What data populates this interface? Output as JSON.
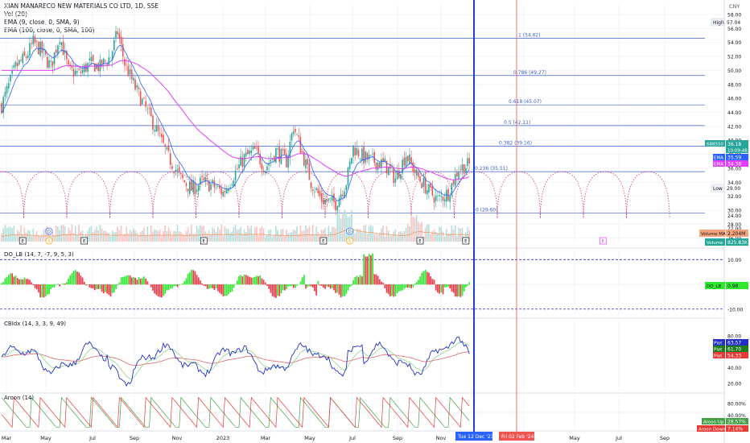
{
  "header": {
    "title": "XIAN MANARECO NEW MATERIALS CO LTD, 1D, SSE",
    "indicators": [
      "Vol (20)",
      "EMA (9, close, 0, SMA, 9)",
      "EMA (100, close, 0, SMA, 100)"
    ]
  },
  "currency": "CNY",
  "colors": {
    "up": "#26a69a",
    "down": "#ef5350",
    "fib": "#3a5fcd",
    "ema9": "#2962ff",
    "ema100": "#e040fb",
    "cycle": "#e0245e",
    "vline": "#1e40d8",
    "vline2": "#ef5350",
    "do_up": "#2ee82e",
    "do_dn": "#f23645",
    "cbi_plot": "#2230c8",
    "cbi_ema1": "#8fd18f",
    "cbi_ema2": "#e06666",
    "aroon_up": "#43a047",
    "aroon_dn": "#e53935"
  },
  "time_axis": {
    "labels": [
      "Mar",
      "May",
      "Jul",
      "Sep",
      "Nov",
      "2023",
      "Mar",
      "May",
      "Jul",
      "Sep",
      "Nov",
      "Mar",
      "May",
      "Jul",
      "Sep"
    ],
    "date_tag_1": "Tue 12 Dec '23",
    "date_tag_2": "Fri 02 Feb '24"
  },
  "chart_data": [
    {
      "type": "candlestick",
      "title": "XIAN MANARECO NEW MATERIALS CO LTD, 1D, SSE",
      "ylim": [
        25.5,
        59.5
      ],
      "y_ticks": [
        26,
        28,
        30,
        32,
        34,
        36,
        38,
        40,
        42,
        44,
        46,
        48,
        50,
        52,
        54,
        56,
        58
      ],
      "y_tick_labels": [
        "26.00",
        "28.00",
        "30.00",
        "32.00",
        "34.00",
        "36.00",
        "38.00",
        "40.00",
        "42.00",
        "44.00",
        "46.00",
        "48.00",
        "50.00",
        "52.00",
        "54.00",
        "56.00",
        "58.00"
      ],
      "close_anchors": [
        [
          0,
          45.0
        ],
        [
          8,
          50.5
        ],
        [
          14,
          52.0
        ],
        [
          18,
          54.0
        ],
        [
          22,
          53.0
        ],
        [
          28,
          50.5
        ],
        [
          33,
          55.0
        ],
        [
          38,
          50.0
        ],
        [
          44,
          49.5
        ],
        [
          50,
          51.0
        ],
        [
          56,
          50.5
        ],
        [
          62,
          52.0
        ],
        [
          66,
          55.5
        ],
        [
          70,
          51.0
        ],
        [
          76,
          47.5
        ],
        [
          82,
          44.5
        ],
        [
          88,
          41.5
        ],
        [
          94,
          38.0
        ],
        [
          102,
          34.5
        ],
        [
          108,
          33.0
        ],
        [
          114,
          34.0
        ],
        [
          120,
          33.5
        ],
        [
          126,
          32.5
        ],
        [
          132,
          35.0
        ],
        [
          138,
          37.5
        ],
        [
          144,
          38.5
        ],
        [
          150,
          36.0
        ],
        [
          156,
          38.5
        ],
        [
          162,
          37.0
        ],
        [
          166,
          42.0
        ],
        [
          170,
          39.0
        ],
        [
          176,
          34.0
        ],
        [
          182,
          31.5
        ],
        [
          190,
          31.0
        ],
        [
          196,
          34.0
        ],
        [
          200,
          39.0
        ],
        [
          206,
          37.5
        ],
        [
          212,
          37.0
        ],
        [
          218,
          36.5
        ],
        [
          224,
          34.5
        ],
        [
          230,
          38.0
        ],
        [
          236,
          35.0
        ],
        [
          242,
          33.0
        ],
        [
          248,
          31.5
        ],
        [
          254,
          32.5
        ],
        [
          260,
          36.0
        ],
        [
          266,
          36.5
        ]
      ],
      "fib_levels": [
        {
          "label": "1 (54.62)",
          "value": 54.62
        },
        {
          "label": "0.786 (49.27)",
          "value": 49.27
        },
        {
          "label": "0.618 (45.07)",
          "value": 45.07
        },
        {
          "label": "0.5 (42.11)",
          "value": 42.11
        },
        {
          "label": "0.382 (39.16)",
          "value": 39.16
        },
        {
          "label": "0.236 (35.51)",
          "value": 35.51
        },
        {
          "label": "0 (29.60)",
          "value": 29.6
        }
      ],
      "markers": {
        "high_label": "High",
        "high_value": "57.04",
        "low_label": "Low",
        "low_value": "29.00",
        "symbol_label": "688550",
        "last_price": "36.18",
        "countdown": "10:09:48",
        "ema9_label": "EMA",
        "ema9_value": "35.59",
        "ema100_label": "EMA",
        "ema100_value": "34.38"
      },
      "events": [
        {
          "t": 12,
          "kind": "E"
        },
        {
          "t": 27,
          "kind": "D"
        },
        {
          "t": 27,
          "kind": "S"
        },
        {
          "t": 47,
          "kind": "E"
        },
        {
          "t": 115,
          "kind": "E"
        },
        {
          "t": 183,
          "kind": "E"
        },
        {
          "t": 198,
          "kind": "D"
        },
        {
          "t": 198,
          "kind": "S"
        },
        {
          "t": 238,
          "kind": "E"
        },
        {
          "t": 264,
          "kind": "E"
        },
        {
          "t": 342,
          "kind": "E"
        }
      ]
    },
    {
      "type": "bar",
      "title": "Vol (20)",
      "series": [
        {
          "name": "Volume"
        },
        {
          "name": "Volume MA"
        }
      ],
      "legend": {
        "ma_label": "Volume MA",
        "ma_value": "2.204M",
        "vol_label": "Volume",
        "vol_value": "825.83K"
      },
      "y_ticks": [
        "24.00",
        "22.00"
      ]
    },
    {
      "type": "bar",
      "title": "DO_LB (14, 7, -7, 9, 5, 3)",
      "ylim": [
        -13,
        14
      ],
      "y_tick_labels": [
        "10.00",
        "-10.00"
      ],
      "bands": [
        10,
        -10
      ],
      "label": "DO_LB",
      "value": "0.98"
    },
    {
      "type": "line",
      "title": "CBIdx (14, 3, 3, 9, 49)",
      "ylim": [
        10,
        100
      ],
      "y_ticks": [
        20,
        40,
        60,
        80
      ],
      "y_tick_labels": [
        "20.00",
        "40.00",
        "60.00",
        "80.00"
      ],
      "series": [
        {
          "name": "Plot",
          "value": "63.57"
        },
        {
          "name": "Plot",
          "value": "61.70"
        },
        {
          "name": "Plot",
          "value": "54.33"
        }
      ]
    },
    {
      "type": "line",
      "title": "Aroon (14)",
      "ylim": [
        -10,
        110
      ],
      "y_tick_labels": [
        "80.00%",
        "40.00%",
        "0.00%"
      ],
      "series": [
        {
          "name": "Aroon Up",
          "value": "28.57%"
        },
        {
          "name": "Aroon Down",
          "value": "7.14%"
        }
      ]
    }
  ]
}
